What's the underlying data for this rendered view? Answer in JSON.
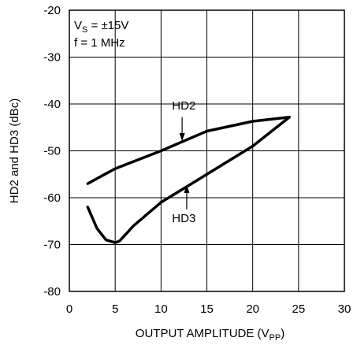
{
  "chart_data": {
    "type": "line",
    "xlabel_main": "OUTPUT AMPLITUDE (V",
    "xlabel_sub": "PP",
    "xlabel_close": ")",
    "ylabel": "HD2 and HD3 (dBc)",
    "xlim": [
      0,
      30
    ],
    "ylim": [
      -80,
      -20
    ],
    "x_ticks": [
      "0",
      "5",
      "10",
      "15",
      "20",
      "25",
      "30"
    ],
    "y_ticks": [
      "-20",
      "-30",
      "-40",
      "-50",
      "-60",
      "-70",
      "-80"
    ],
    "grid": true,
    "annotations": {
      "cond_vs_prefix": "V",
      "cond_vs_sub": "S",
      "cond_vs_value": " = ±15V",
      "cond_f": "f = 1 MHz"
    },
    "series": [
      {
        "name": "HD2",
        "x": [
          2,
          5,
          10,
          15,
          20,
          24
        ],
        "y": [
          -57,
          -53.8,
          -50,
          -45.8,
          -43.7,
          -42.8
        ]
      },
      {
        "name": "HD3",
        "x": [
          2,
          3,
          4,
          5,
          5.5,
          7,
          10,
          15,
          20,
          24
        ],
        "y": [
          -62,
          -66.5,
          -69,
          -69.6,
          -69.2,
          -66,
          -61,
          -55,
          -49,
          -42.8
        ]
      }
    ]
  }
}
